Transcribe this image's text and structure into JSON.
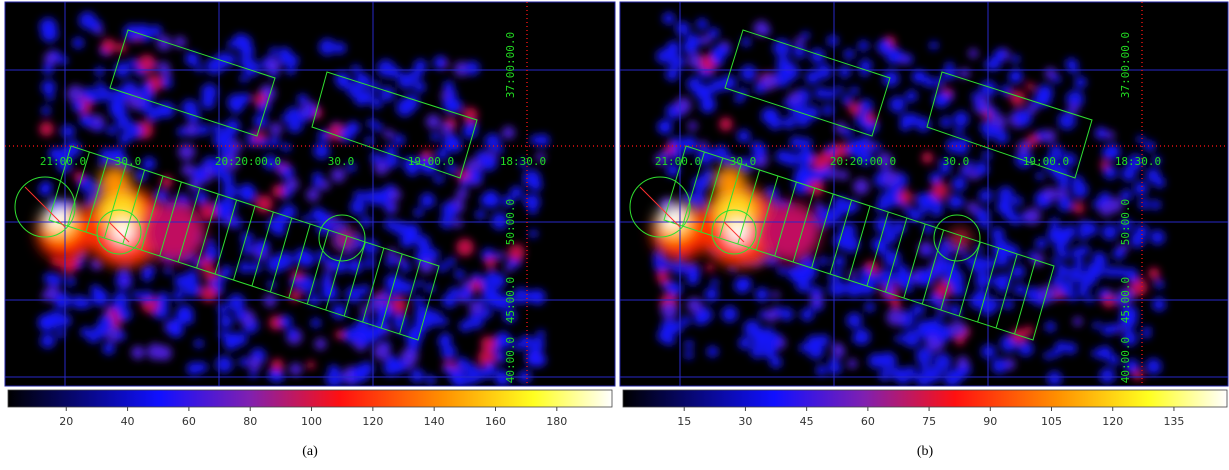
{
  "panels": [
    {
      "caption": "(a)",
      "ra_labels": [
        "21:00.0",
        "30.0",
        "20:20:00.0",
        "30.0",
        "19:00.0",
        "18:30.0"
      ],
      "dec_labels": [
        "37:00:00.0",
        "50:00.0",
        "45:00.0",
        "40:00.0"
      ],
      "colorbar": {
        "range": [
          1,
          198
        ],
        "ticks": [
          20,
          40,
          60,
          80,
          100,
          120,
          140,
          160,
          180
        ]
      }
    },
    {
      "caption": "(b)",
      "ra_labels": [
        "21:00.0",
        "30.0",
        "20:20:00.0",
        "30.0",
        "19:00.0",
        "18:30.0"
      ],
      "dec_labels": [
        "37:00:00.0",
        "50:00.0",
        "45:00.0",
        "40:00.0"
      ],
      "colorbar": {
        "range": [
          0,
          148
        ],
        "ticks": [
          15,
          30,
          45,
          60,
          75,
          90,
          105,
          120,
          135
        ]
      }
    }
  ]
}
